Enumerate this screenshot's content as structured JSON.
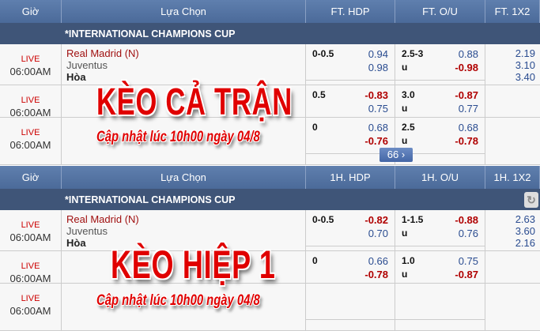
{
  "ft": {
    "headers": [
      "Giờ",
      "Lựa Chọn",
      "FT. HDP",
      "FT. O/U",
      "FT. 1X2"
    ],
    "league": "*INTERNATIONAL CHAMPIONS CUP",
    "rows": [
      {
        "live": "LIVE",
        "time": "06:00AM",
        "home": "Real Madrid (N)",
        "away": "Juventus",
        "draw": "Hòa",
        "hdp_line": "0-0.5",
        "hdp_a": "0.94",
        "hdp_b": "0.98",
        "ou_line": "2.5-3",
        "ou_u": "u",
        "ou_a": "0.88",
        "ou_b": "-0.98",
        "x1": "2.19",
        "x2": "3.10",
        "x3": "3.40"
      },
      {
        "live": "LIVE",
        "time": "06:00AM",
        "hdp_line": "0.5",
        "hdp_a": "-0.83",
        "hdp_b": "0.75",
        "ou_line": "3.0",
        "ou_u": "u",
        "ou_a": "-0.87",
        "ou_b": "0.77"
      },
      {
        "live": "LIVE",
        "time": "06:00AM",
        "hdp_line": "0",
        "hdp_a": "0.68",
        "hdp_b": "-0.76",
        "ou_line": "2.5",
        "ou_u": "u",
        "ou_a": "0.68",
        "ou_b": "-0.78"
      }
    ],
    "more": "66 ›",
    "overlay_title": "KÈO CẢ TRẬN",
    "overlay_sub": "Cập nhật lúc 10h00 ngày 04/8"
  },
  "h1": {
    "headers": [
      "Giờ",
      "Lựa Chọn",
      "1H. HDP",
      "1H. O/U",
      "1H. 1X2"
    ],
    "league": "*INTERNATIONAL CHAMPIONS CUP",
    "rows": [
      {
        "live": "LIVE",
        "time": "06:00AM",
        "home": "Real Madrid (N)",
        "away": "Juventus",
        "draw": "Hòa",
        "hdp_line": "0-0.5",
        "hdp_a": "-0.82",
        "hdp_b": "0.70",
        "ou_line": "1-1.5",
        "ou_u": "u",
        "ou_a": "-0.88",
        "ou_b": "0.76",
        "x1": "2.63",
        "x2": "3.60",
        "x3": "2.16"
      },
      {
        "live": "LIVE",
        "time": "06:00AM",
        "hdp_line": "0",
        "hdp_a": "0.66",
        "hdp_b": "-0.78",
        "ou_line": "1.0",
        "ou_u": "u",
        "ou_a": "0.75",
        "ou_b": "-0.87"
      },
      {
        "live": "LIVE",
        "time": "06:00AM"
      }
    ],
    "overlay_title": "KÈO HIỆP 1",
    "overlay_sub": "Cập nhật lúc 10h00 ngày 04/8"
  },
  "colors": {
    "header": "#4f6e9e",
    "league": "#3f5578",
    "negative": "#b00000",
    "positive": "#2a4c90"
  },
  "icons": {
    "refresh": "refresh-icon",
    "more": "chevron-right-icon"
  }
}
